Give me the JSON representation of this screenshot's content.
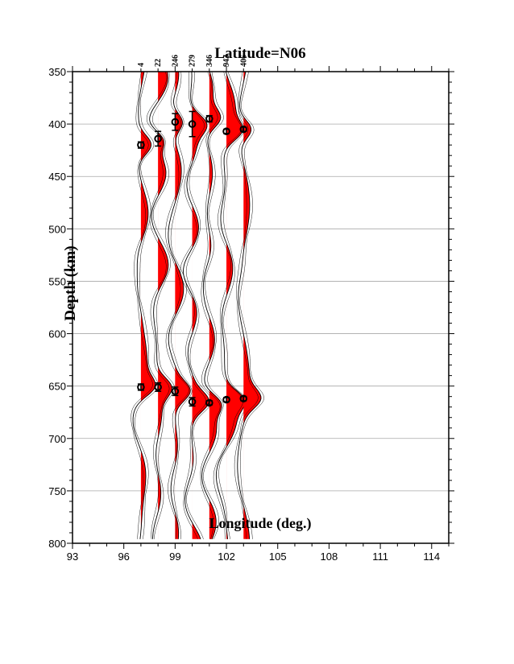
{
  "chart_data": {
    "type": "line",
    "title": "Latitude=N06",
    "xlabel": "Longitude (deg.)",
    "ylabel": "Depth (km)",
    "xlim": [
      93,
      115
    ],
    "ylim": [
      350,
      800
    ],
    "y_inverted": true,
    "x_ticks": [
      "93",
      "96",
      "99",
      "102",
      "105",
      "108",
      "111",
      "114"
    ],
    "y_ticks": [
      "350",
      "400",
      "450",
      "500",
      "550",
      "600",
      "650",
      "700",
      "750",
      "800"
    ],
    "grid": "horizontal",
    "trace_fill_color": "#ff0000",
    "traces": [
      {
        "longitude": 97,
        "count": "4",
        "picks": [
          {
            "depth": 420,
            "err": 3
          },
          {
            "depth": 651,
            "err": 3
          }
        ]
      },
      {
        "longitude": 98,
        "count": "22",
        "picks": [
          {
            "depth": 414,
            "err": 7
          },
          {
            "depth": 651,
            "err": 4
          }
        ]
      },
      {
        "longitude": 99,
        "count": "246",
        "picks": [
          {
            "depth": 398,
            "err": 8
          },
          {
            "depth": 655,
            "err": 4
          }
        ]
      },
      {
        "longitude": 100,
        "count": "279",
        "picks": [
          {
            "depth": 400,
            "err": 12
          },
          {
            "depth": 665,
            "err": 4
          }
        ]
      },
      {
        "longitude": 101,
        "count": "346",
        "picks": [
          {
            "depth": 395,
            "err": 3
          },
          {
            "depth": 666,
            "err": 2
          }
        ]
      },
      {
        "longitude": 102,
        "count": "943",
        "picks": [
          {
            "depth": 407,
            "err": 2
          },
          {
            "depth": 663,
            "err": 2
          }
        ]
      },
      {
        "longitude": 103,
        "count": "406",
        "picks": [
          {
            "depth": 405,
            "err": 2
          },
          {
            "depth": 662,
            "err": 2
          }
        ]
      }
    ]
  }
}
